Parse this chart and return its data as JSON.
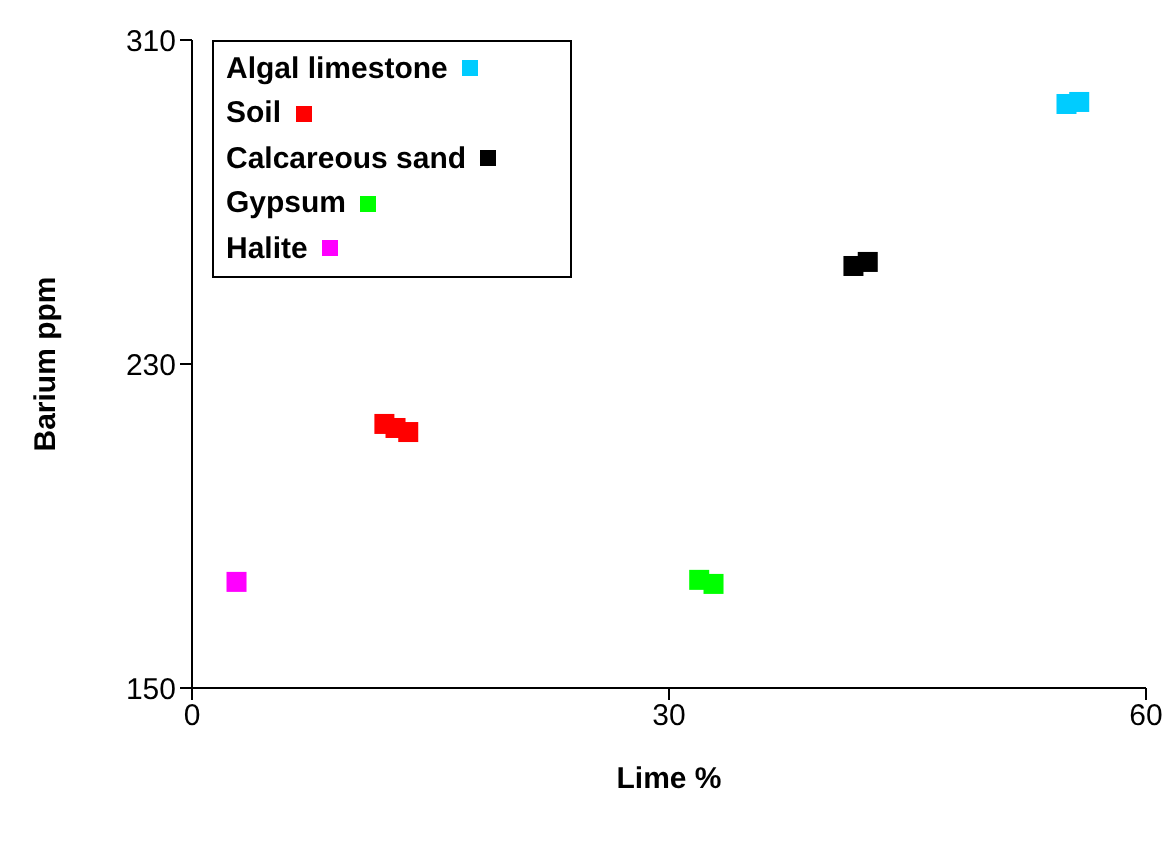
{
  "chart_data": {
    "type": "scatter",
    "xlabel": "Lime %",
    "ylabel": "Barium ppm",
    "xlim": [
      0,
      60
    ],
    "xticks": [
      0,
      30,
      60
    ],
    "ylim": [
      150,
      310
    ],
    "yticks": [
      150,
      230,
      310
    ],
    "grid": false,
    "legend": "top left",
    "marker": "square",
    "series": [
      {
        "name": "Algal limestone",
        "color": "#00ccff",
        "x": [
          55.0,
          55.8
        ],
        "values": [
          294.2,
          294.7
        ]
      },
      {
        "name": "Soil",
        "color": "#ff0000",
        "x": [
          12.1,
          12.8,
          13.6
        ],
        "values": [
          215.2,
          214.2,
          213.2
        ]
      },
      {
        "name": "Calcareous sand",
        "color": "#000000",
        "x": [
          41.6,
          42.5
        ],
        "values": [
          254.2,
          255.2
        ]
      },
      {
        "name": "Gypsum",
        "color": "#00ff00",
        "x": [
          31.9,
          32.8
        ],
        "values": [
          176.7,
          175.7
        ]
      },
      {
        "name": "Halite",
        "color": "#ff00ff",
        "x": [
          2.8
        ],
        "values": [
          176.2
        ]
      }
    ]
  }
}
